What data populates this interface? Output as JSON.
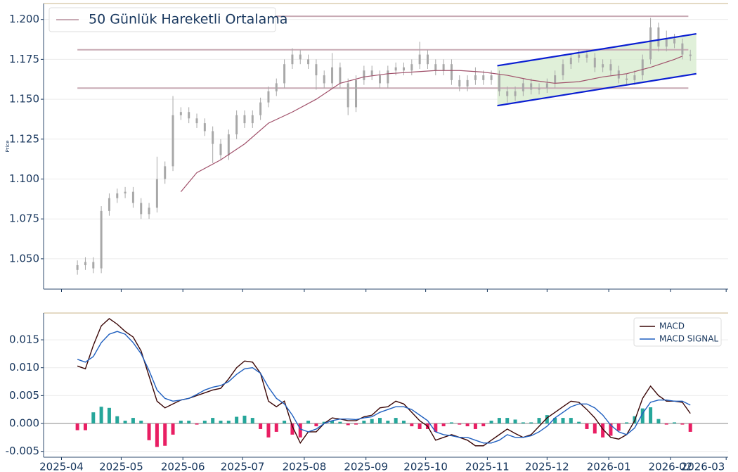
{
  "chart_data": [
    {
      "type": "candlestick",
      "ylabel": "Price",
      "xlim": [
        -9,
        335
      ],
      "ylim": [
        1.031,
        1.21
      ],
      "yticks": [
        {
          "value": 1.05,
          "label": "1.050"
        },
        {
          "value": 1.075,
          "label": "1.075"
        },
        {
          "value": 1.1,
          "label": "1.100"
        },
        {
          "value": 1.125,
          "label": "1.125"
        },
        {
          "value": 1.15,
          "label": "1.150"
        },
        {
          "value": 1.175,
          "label": "1.175"
        },
        {
          "value": 1.2,
          "label": "1.200"
        }
      ],
      "grid": true,
      "color": "#a8a8a8",
      "x": [
        8,
        12,
        16,
        20,
        24,
        28,
        32,
        36,
        40,
        44,
        48,
        52,
        56,
        60,
        64,
        68,
        72,
        76,
        80,
        84,
        88,
        92,
        96,
        100,
        104,
        108,
        112,
        116,
        120,
        124,
        128,
        132,
        136,
        140,
        144,
        148,
        152,
        156,
        160,
        164,
        168,
        172,
        176,
        180,
        184,
        188,
        192,
        196,
        200,
        204,
        208,
        212,
        216,
        220,
        224,
        228,
        232,
        236,
        240,
        244,
        248,
        252,
        256,
        260,
        264,
        268,
        272,
        276,
        280,
        284,
        288,
        292,
        296,
        300,
        304,
        308,
        312,
        316
      ],
      "open": [
        1.043,
        1.046,
        1.048,
        1.044,
        1.08,
        1.088,
        1.091,
        1.092,
        1.085,
        1.078,
        1.082,
        1.1,
        1.108,
        1.14,
        1.142,
        1.138,
        1.135,
        1.13,
        1.122,
        1.115,
        1.128,
        1.14,
        1.135,
        1.14,
        1.148,
        1.155,
        1.16,
        1.172,
        1.178,
        1.175,
        1.172,
        1.165,
        1.16,
        1.17,
        1.16,
        1.145,
        1.162,
        1.168,
        1.165,
        1.16,
        1.168,
        1.17,
        1.168,
        1.172,
        1.178,
        1.172,
        1.168,
        1.172,
        1.162,
        1.158,
        1.162,
        1.165,
        1.162,
        1.165,
        1.155,
        1.152,
        1.155,
        1.16,
        1.156,
        1.157,
        1.16,
        1.165,
        1.172,
        1.176,
        1.178,
        1.176,
        1.17,
        1.172,
        1.168,
        1.163,
        1.162,
        1.165,
        1.175,
        1.195,
        1.183,
        1.188,
        1.185,
        1.178
      ],
      "high": [
        1.049,
        1.051,
        1.051,
        1.083,
        1.091,
        1.094,
        1.095,
        1.095,
        1.088,
        1.085,
        1.114,
        1.111,
        1.152,
        1.145,
        1.145,
        1.141,
        1.138,
        1.133,
        1.125,
        1.131,
        1.143,
        1.143,
        1.143,
        1.151,
        1.158,
        1.163,
        1.175,
        1.182,
        1.181,
        1.178,
        1.175,
        1.168,
        1.179,
        1.173,
        1.163,
        1.165,
        1.171,
        1.171,
        1.168,
        1.171,
        1.173,
        1.173,
        1.175,
        1.186,
        1.181,
        1.175,
        1.175,
        1.175,
        1.165,
        1.165,
        1.17,
        1.168,
        1.168,
        1.168,
        1.158,
        1.158,
        1.163,
        1.163,
        1.16,
        1.163,
        1.168,
        1.175,
        1.179,
        1.181,
        1.181,
        1.179,
        1.175,
        1.175,
        1.171,
        1.166,
        1.168,
        1.178,
        1.201,
        1.198,
        1.193,
        1.191,
        1.188,
        1.181
      ],
      "low": [
        1.04,
        1.043,
        1.041,
        1.041,
        1.077,
        1.085,
        1.088,
        1.082,
        1.075,
        1.075,
        1.079,
        1.097,
        1.105,
        1.137,
        1.135,
        1.132,
        1.127,
        1.11,
        1.112,
        1.112,
        1.125,
        1.132,
        1.132,
        1.137,
        1.145,
        1.152,
        1.157,
        1.169,
        1.172,
        1.169,
        1.156,
        1.157,
        1.157,
        1.157,
        1.14,
        1.142,
        1.159,
        1.162,
        1.157,
        1.157,
        1.165,
        1.165,
        1.165,
        1.169,
        1.169,
        1.165,
        1.165,
        1.159,
        1.155,
        1.155,
        1.159,
        1.159,
        1.159,
        1.152,
        1.148,
        1.149,
        1.152,
        1.153,
        1.153,
        1.154,
        1.157,
        1.162,
        1.169,
        1.173,
        1.173,
        1.167,
        1.167,
        1.165,
        1.16,
        1.159,
        1.159,
        1.162,
        1.172,
        1.18,
        1.18,
        1.182,
        1.175,
        1.174
      ],
      "close": [
        1.046,
        1.048,
        1.044,
        1.08,
        1.088,
        1.091,
        1.092,
        1.085,
        1.078,
        1.082,
        1.1,
        1.108,
        1.14,
        1.142,
        1.138,
        1.135,
        1.13,
        1.122,
        1.115,
        1.128,
        1.14,
        1.135,
        1.14,
        1.148,
        1.155,
        1.16,
        1.172,
        1.178,
        1.175,
        1.172,
        1.165,
        1.16,
        1.17,
        1.16,
        1.145,
        1.162,
        1.168,
        1.165,
        1.16,
        1.168,
        1.17,
        1.168,
        1.172,
        1.178,
        1.172,
        1.168,
        1.172,
        1.162,
        1.158,
        1.162,
        1.165,
        1.162,
        1.165,
        1.155,
        1.152,
        1.155,
        1.16,
        1.156,
        1.157,
        1.16,
        1.165,
        1.172,
        1.176,
        1.178,
        1.176,
        1.17,
        1.172,
        1.168,
        1.163,
        1.162,
        1.165,
        1.175,
        1.195,
        1.183,
        1.188,
        1.185,
        1.178,
        1.177
      ],
      "ma": {
        "name": "50 Günlük Hareketli Ortalama",
        "color": "#a0506a",
        "x": [
          60,
          68,
          80,
          92,
          104,
          116,
          128,
          140,
          152,
          164,
          176,
          188,
          200,
          212,
          224,
          236,
          248,
          260,
          272,
          284,
          296,
          308,
          312
        ],
        "values": [
          1.092,
          1.104,
          1.112,
          1.122,
          1.135,
          1.142,
          1.15,
          1.16,
          1.164,
          1.166,
          1.167,
          1.168,
          1.168,
          1.167,
          1.165,
          1.162,
          1.16,
          1.161,
          1.164,
          1.166,
          1.17,
          1.175,
          1.177
        ]
      },
      "levels": [
        {
          "y": 1.202,
          "x": [
            107,
            315
          ]
        },
        {
          "y": 1.181,
          "x": [
            8,
            315
          ]
        },
        {
          "y": 1.157,
          "x": [
            8,
            315
          ]
        }
      ],
      "level_color": "#c8aab4",
      "channel": {
        "color": "#0a1ed2",
        "fill": "#d8ecd0",
        "x": [
          219,
          319
        ],
        "upper": [
          1.171,
          1.191
        ],
        "lower": [
          1.146,
          1.166
        ]
      }
    },
    {
      "type": "macd",
      "xlim": [
        -9,
        335
      ],
      "ylim": [
        -0.00605,
        0.0198
      ],
      "yticks": [
        {
          "value": -0.005,
          "label": "-0.005"
        },
        {
          "value": 0,
          "label": "0.000"
        },
        {
          "value": 0.005,
          "label": "0.005"
        },
        {
          "value": 0.01,
          "label": "0.010"
        },
        {
          "value": 0.015,
          "label": "0.015"
        }
      ],
      "xticks": [
        {
          "value": 0,
          "label": "2025-04"
        },
        {
          "value": 30,
          "label": "2025-05"
        },
        {
          "value": 61,
          "label": "2025-06"
        },
        {
          "value": 91,
          "label": "2025-07"
        },
        {
          "value": 122,
          "label": "2025-08"
        },
        {
          "value": 153,
          "label": "2025-09"
        },
        {
          "value": 183,
          "label": "2025-10"
        },
        {
          "value": 214,
          "label": "2025-11"
        },
        {
          "value": 244,
          "label": "2025-12"
        },
        {
          "value": 275,
          "label": "2026-01"
        },
        {
          "value": 306,
          "label": "2026-02"
        },
        {
          "value": 334,
          "label": "2026-03"
        }
      ],
      "grid": true,
      "legend": "upper right",
      "x": [
        8,
        12,
        16,
        20,
        24,
        28,
        32,
        36,
        40,
        44,
        48,
        52,
        56,
        60,
        64,
        68,
        72,
        76,
        80,
        84,
        88,
        92,
        96,
        100,
        104,
        108,
        112,
        116,
        120,
        124,
        128,
        132,
        136,
        140,
        144,
        148,
        152,
        156,
        160,
        164,
        168,
        172,
        176,
        180,
        184,
        188,
        192,
        196,
        200,
        204,
        208,
        212,
        216,
        220,
        224,
        228,
        232,
        236,
        240,
        244,
        248,
        252,
        256,
        260,
        264,
        268,
        272,
        276,
        280,
        284,
        288,
        292,
        296,
        300,
        304,
        308,
        312,
        316
      ],
      "series": [
        {
          "name": "MACD",
          "color": "#3a0606",
          "values": [
            0.0103,
            0.0098,
            0.014,
            0.0175,
            0.0188,
            0.0178,
            0.0165,
            0.0155,
            0.013,
            0.0085,
            0.004,
            0.0028,
            0.0035,
            0.0042,
            0.0045,
            0.005,
            0.0055,
            0.006,
            0.0063,
            0.008,
            0.01,
            0.0112,
            0.011,
            0.009,
            0.004,
            0.003,
            0.004,
            -0.0005,
            -0.0035,
            -0.0015,
            -0.0015,
            0,
            0.001,
            0.0008,
            0.0005,
            0.0005,
            0.0012,
            0.0015,
            0.0028,
            0.003,
            0.004,
            0.0035,
            0.002,
            0.0005,
            -0.0005,
            -0.003,
            -0.0025,
            -0.002,
            -0.0025,
            -0.003,
            -0.004,
            -0.004,
            -0.003,
            -0.002,
            -0.001,
            -0.0018,
            -0.0025,
            -0.002,
            -0.0005,
            0.001,
            0.002,
            0.003,
            0.004,
            0.0038,
            0.0025,
            0.001,
            -0.001,
            -0.0025,
            -0.0028,
            -0.002,
            0.0005,
            0.0045,
            0.0067,
            0.005,
            0.004,
            0.004,
            0.0038,
            0.0018
          ]
        },
        {
          "name": "MACD SIGNAL",
          "color": "#1f5fbf",
          "values": [
            0.0115,
            0.011,
            0.012,
            0.0145,
            0.016,
            0.0165,
            0.016,
            0.0145,
            0.0125,
            0.0095,
            0.006,
            0.0045,
            0.004,
            0.0042,
            0.0045,
            0.0052,
            0.006,
            0.0065,
            0.0068,
            0.0075,
            0.0088,
            0.0098,
            0.01,
            0.009,
            0.0065,
            0.0045,
            0.0035,
            0.0015,
            -0.001,
            -0.0015,
            -0.001,
            0,
            0.0005,
            0.0008,
            0.0008,
            0.0007,
            0.001,
            0.0012,
            0.002,
            0.0025,
            0.003,
            0.003,
            0.0025,
            0.0015,
            0.0005,
            -0.0015,
            -0.002,
            -0.0022,
            -0.0025,
            -0.0025,
            -0.003,
            -0.0035,
            -0.0035,
            -0.003,
            -0.002,
            -0.0025,
            -0.0025,
            -0.0022,
            -0.0015,
            -0.0005,
            0.001,
            0.002,
            0.003,
            0.0035,
            0.0035,
            0.0028,
            0.0015,
            -0.0003,
            -0.0015,
            -0.002,
            -0.0008,
            0.0018,
            0.0038,
            0.0042,
            0.0042,
            0.004,
            0.004,
            0.0033
          ]
        }
      ],
      "histogram": {
        "positive_color": "#26a69a",
        "negative_color": "#e91e63",
        "values": [
          -0.0012,
          -0.0012,
          0.002,
          0.003,
          0.0028,
          0.0013,
          0.0005,
          0.001,
          0.0005,
          -0.003,
          -0.0042,
          -0.004,
          -0.002,
          0.0005,
          0.0005,
          -0.0002,
          0.0005,
          0.001,
          0.0005,
          0.0005,
          0.0012,
          0.0014,
          0.001,
          -0.001,
          -0.0025,
          -0.0015,
          0.0005,
          -0.002,
          -0.0025,
          0.0005,
          -0.0005,
          0.0003,
          0.0005,
          0.0003,
          -0.0003,
          -0.0002,
          0.0005,
          0.0008,
          0.001,
          0.0005,
          0.001,
          0.0005,
          -0.0005,
          -0.001,
          -0.001,
          -0.0015,
          -0.0005,
          0.0002,
          -0.0002,
          -0.0005,
          -0.001,
          -0.0005,
          0.0005,
          0.001,
          0.001,
          0.0007,
          0.0002,
          0.0002,
          0.001,
          0.0015,
          0.001,
          0.001,
          0.001,
          0.0003,
          -0.001,
          -0.0018,
          -0.0025,
          -0.0022,
          -0.0013,
          0.0002,
          0.0013,
          0.0027,
          0.0029,
          0.0008,
          -0.0002,
          0.0002,
          -0.0002,
          -0.0015
        ]
      }
    }
  ]
}
